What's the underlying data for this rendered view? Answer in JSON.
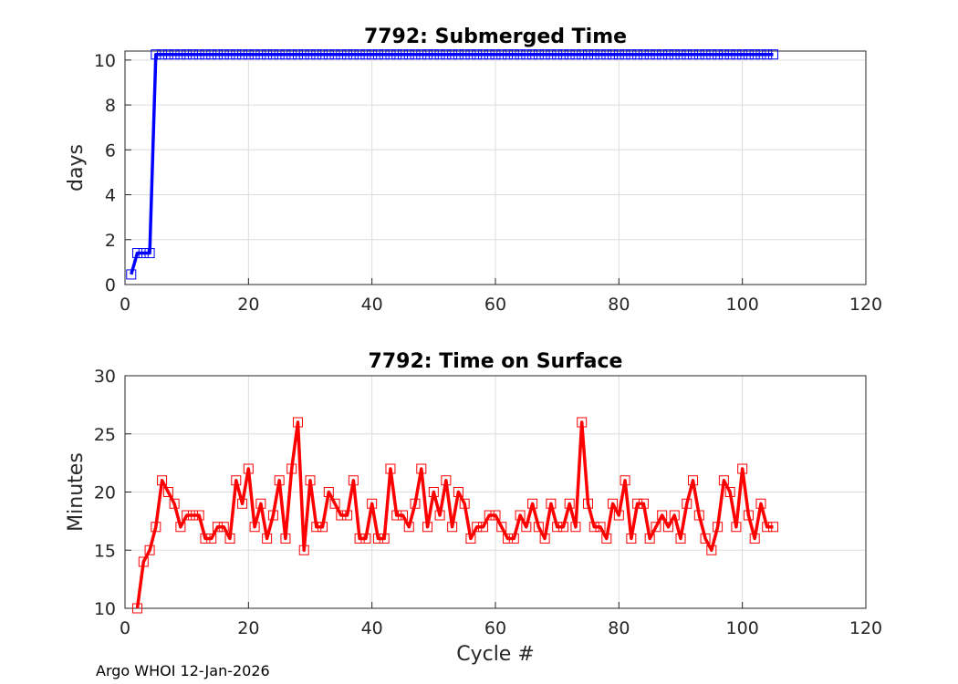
{
  "footer": "Argo WHOI 12-Jan-2026",
  "chart_data": [
    {
      "type": "line",
      "title": "7792: Submerged Time",
      "xlabel": "",
      "ylabel": "days",
      "xlim": [
        0,
        120
      ],
      "ylim": [
        0,
        10.4
      ],
      "xticks": [
        "0",
        "20",
        "40",
        "60",
        "80",
        "100",
        "120"
      ],
      "yticks": [
        "0",
        "2",
        "4",
        "6",
        "8",
        "10"
      ],
      "grid": true,
      "color": "#0000ff",
      "series": [
        {
          "name": "Submerged Time",
          "x": [
            1,
            2,
            3,
            4,
            5,
            6,
            7,
            8,
            9,
            10,
            11,
            12,
            13,
            14,
            15,
            16,
            17,
            18,
            19,
            20,
            21,
            22,
            23,
            24,
            25,
            26,
            27,
            28,
            29,
            30,
            31,
            32,
            33,
            34,
            35,
            36,
            37,
            38,
            39,
            40,
            41,
            42,
            43,
            44,
            45,
            46,
            47,
            48,
            49,
            50,
            51,
            52,
            53,
            54,
            55,
            56,
            57,
            58,
            59,
            60,
            61,
            62,
            63,
            64,
            65,
            66,
            67,
            68,
            69,
            70,
            71,
            72,
            73,
            74,
            75,
            76,
            77,
            78,
            79,
            80,
            81,
            82,
            83,
            84,
            85,
            86,
            87,
            88,
            89,
            90,
            91,
            92,
            93,
            94,
            95,
            96,
            97,
            98,
            99,
            100,
            101,
            102,
            103,
            104,
            105
          ],
          "y": [
            0.45,
            1.4,
            1.4,
            1.4,
            10.25,
            10.25,
            10.25,
            10.25,
            10.25,
            10.25,
            10.25,
            10.25,
            10.25,
            10.25,
            10.25,
            10.25,
            10.25,
            10.25,
            10.25,
            10.25,
            10.25,
            10.25,
            10.25,
            10.25,
            10.25,
            10.25,
            10.25,
            10.25,
            10.25,
            10.25,
            10.25,
            10.25,
            10.25,
            10.25,
            10.25,
            10.25,
            10.25,
            10.25,
            10.25,
            10.25,
            10.25,
            10.25,
            10.25,
            10.25,
            10.25,
            10.25,
            10.25,
            10.25,
            10.25,
            10.25,
            10.25,
            10.25,
            10.25,
            10.25,
            10.25,
            10.25,
            10.25,
            10.25,
            10.25,
            10.25,
            10.25,
            10.25,
            10.25,
            10.25,
            10.25,
            10.25,
            10.25,
            10.25,
            10.25,
            10.25,
            10.25,
            10.25,
            10.25,
            10.25,
            10.25,
            10.25,
            10.25,
            10.25,
            10.25,
            10.25,
            10.25,
            10.25,
            10.25,
            10.25,
            10.25,
            10.25,
            10.25,
            10.25,
            10.25,
            10.25,
            10.25,
            10.25,
            10.25,
            10.25,
            10.25,
            10.25,
            10.25,
            10.25,
            10.25,
            10.25,
            10.25,
            10.25,
            10.25,
            10.25,
            10.25
          ]
        }
      ]
    },
    {
      "type": "line",
      "title": "7792: Time on Surface",
      "xlabel": "Cycle #",
      "ylabel": "Minutes",
      "xlim": [
        0,
        120
      ],
      "ylim": [
        10,
        30
      ],
      "xticks": [
        "0",
        "20",
        "40",
        "60",
        "80",
        "100",
        "120"
      ],
      "yticks": [
        "10",
        "15",
        "20",
        "25",
        "30"
      ],
      "grid": true,
      "color": "#ff0000",
      "series": [
        {
          "name": "Time on Surface",
          "x": [
            2,
            3,
            4,
            5,
            6,
            7,
            8,
            9,
            10,
            11,
            12,
            13,
            14,
            15,
            16,
            17,
            18,
            19,
            20,
            21,
            22,
            23,
            24,
            25,
            26,
            27,
            28,
            29,
            30,
            31,
            32,
            33,
            34,
            35,
            36,
            37,
            38,
            39,
            40,
            41,
            42,
            43,
            44,
            45,
            46,
            47,
            48,
            49,
            50,
            51,
            52,
            53,
            54,
            55,
            56,
            57,
            58,
            59,
            60,
            61,
            62,
            63,
            64,
            65,
            66,
            67,
            68,
            69,
            70,
            71,
            72,
            73,
            74,
            75,
            76,
            77,
            78,
            79,
            80,
            81,
            82,
            83,
            84,
            85,
            86,
            87,
            88,
            89,
            90,
            91,
            92,
            93,
            94,
            95,
            96,
            97,
            98,
            99,
            100,
            101,
            102,
            103,
            104,
            105
          ],
          "y": [
            10,
            14,
            15,
            17,
            21,
            20,
            19,
            17,
            18,
            18,
            18,
            16,
            16,
            17,
            17,
            16,
            21,
            19,
            22,
            17,
            19,
            16,
            18,
            21,
            16,
            22,
            26,
            15,
            21,
            17,
            17,
            20,
            19,
            18,
            18,
            21,
            16,
            16,
            19,
            16,
            16,
            22,
            18,
            18,
            17,
            19,
            22,
            17,
            20,
            18,
            21,
            17,
            20,
            19,
            16,
            17,
            17,
            18,
            18,
            17,
            16,
            16,
            18,
            17,
            19,
            17,
            16,
            19,
            17,
            17,
            19,
            17,
            26,
            19,
            17,
            17,
            16,
            19,
            18,
            21,
            16,
            19,
            19,
            16,
            17,
            18,
            17,
            18,
            16,
            19,
            21,
            18,
            16,
            15,
            17,
            21,
            20,
            17,
            22,
            18,
            16,
            19,
            17,
            17
          ]
        }
      ]
    }
  ]
}
